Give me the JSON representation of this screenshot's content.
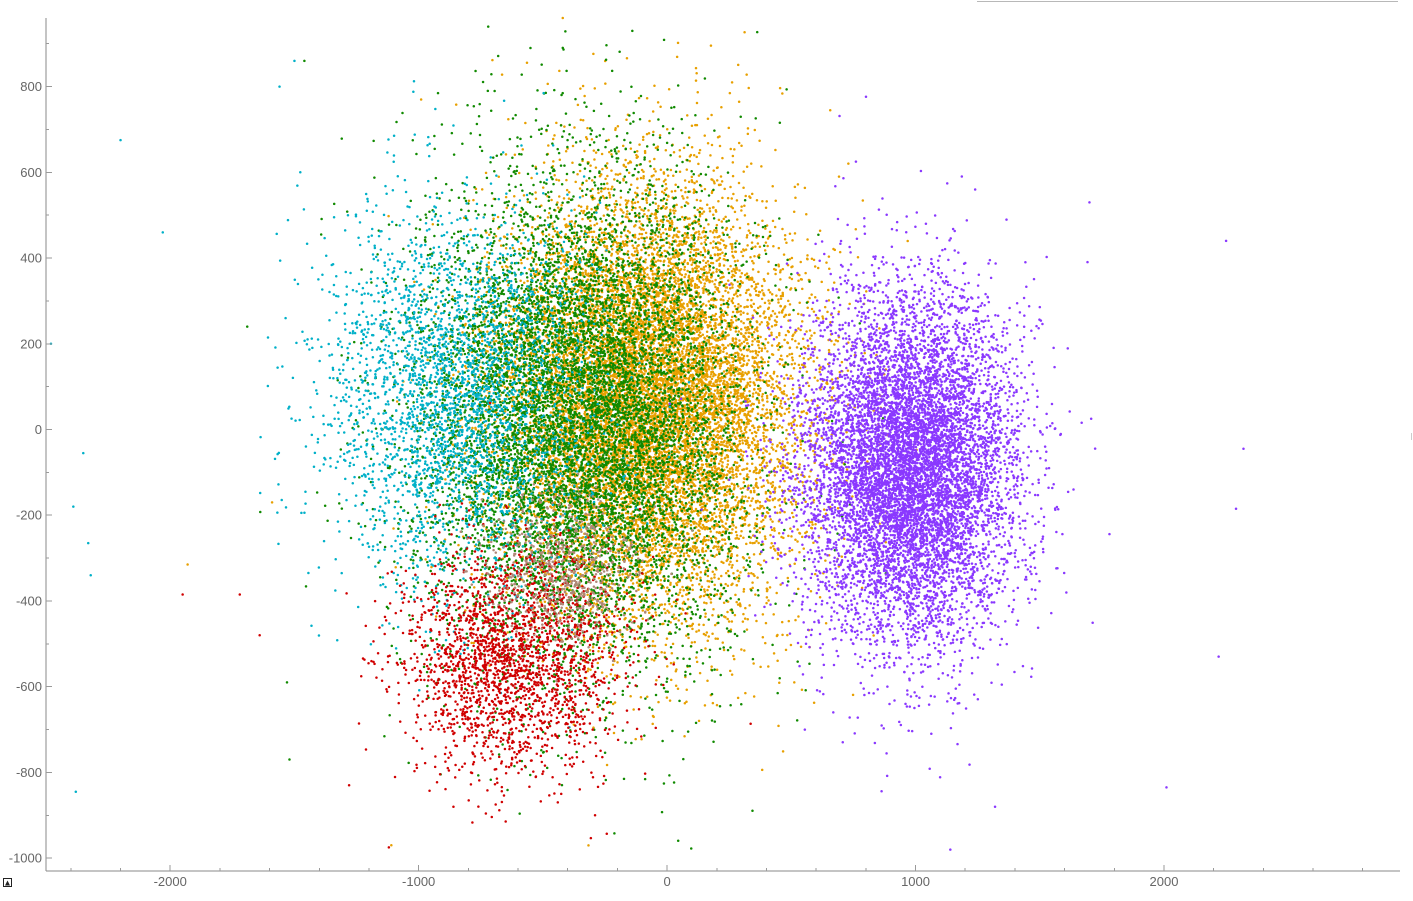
{
  "chart_data": {
    "type": "scatter",
    "title": "",
    "xlabel": "",
    "ylabel": "",
    "xlim": [
      -2500,
      2950
    ],
    "ylim": [
      -1030,
      960
    ],
    "x_ticks": [
      -2000,
      -1000,
      0,
      1000,
      2000
    ],
    "x_tick_labels": [
      "-2000",
      "-1000",
      "0",
      "1000",
      "2000"
    ],
    "y_ticks": [
      800,
      600,
      400,
      200,
      0,
      -200,
      -400,
      -600,
      -800,
      -1000
    ],
    "y_tick_labels": [
      "800",
      "600",
      "400",
      "200",
      "0",
      "-200",
      "-400",
      "-600",
      "-800",
      "-1000"
    ],
    "grid": false,
    "legend": "none",
    "marker_size": 2.5,
    "series": [
      {
        "color": "#e8a000",
        "point_count": 12000,
        "center": [
          -80,
          60
        ],
        "spread": [
          300,
          250
        ],
        "sample_points": [
          [
            420,
            120
          ],
          [
            490,
            -80
          ],
          [
            520,
            230
          ],
          [
            300,
            520
          ],
          [
            120,
            710
          ],
          [
            -420,
            960
          ],
          [
            -990,
            770
          ],
          [
            -1590,
            -170
          ],
          [
            -1110,
            -970
          ],
          [
            -1930,
            -315
          ]
        ]
      },
      {
        "color": "#108a00",
        "point_count": 9000,
        "center": [
          -360,
          20
        ],
        "spread": [
          320,
          280
        ],
        "sample_points": [
          [
            -720,
            940
          ],
          [
            -140,
            930
          ],
          [
            -550,
            890
          ],
          [
            -1460,
            860
          ],
          [
            -1690,
            240
          ],
          [
            -1530,
            -590
          ],
          [
            -1520,
            -770
          ],
          [
            -920,
            -180
          ],
          [
            120,
            -520
          ],
          [
            -200,
            580
          ]
        ]
      },
      {
        "color": "#00b0c8",
        "point_count": 3000,
        "center": [
          -860,
          80
        ],
        "spread": [
          260,
          220
        ],
        "sample_points": [
          [
            -2480,
            200
          ],
          [
            -2200,
            675
          ],
          [
            -2030,
            460
          ],
          [
            -2350,
            -55
          ],
          [
            -2390,
            -180
          ],
          [
            -2330,
            -265
          ],
          [
            -2320,
            -340
          ],
          [
            -2380,
            -845
          ],
          [
            -1500,
            860
          ],
          [
            -1560,
            800
          ]
        ]
      },
      {
        "color": "#d00000",
        "point_count": 2200,
        "center": [
          -620,
          -540
        ],
        "spread": [
          220,
          130
        ],
        "sample_points": [
          [
            -1120,
            -975
          ],
          [
            -860,
            -880
          ],
          [
            -690,
            -875
          ],
          [
            -440,
            -870
          ],
          [
            -290,
            -900
          ],
          [
            -1720,
            -385
          ],
          [
            -1950,
            -385
          ],
          [
            -1640,
            -480
          ],
          [
            -1280,
            -830
          ],
          [
            -520,
            -720
          ]
        ]
      },
      {
        "color": "#8a38ff",
        "point_count": 9000,
        "center": [
          980,
          -90
        ],
        "spread": [
          210,
          200
        ],
        "sample_points": [
          [
            1140,
            -980
          ],
          [
            1320,
            -880
          ],
          [
            2010,
            -835
          ],
          [
            1700,
            530
          ],
          [
            1240,
            560
          ],
          [
            2250,
            440
          ],
          [
            2320,
            -45
          ],
          [
            2290,
            -185
          ],
          [
            2220,
            -530
          ],
          [
            760,
            625
          ]
        ]
      },
      {
        "color": "#b08878",
        "point_count": 600,
        "center": [
          -420,
          -330
        ],
        "spread": [
          150,
          90
        ],
        "sample_points": [
          [
            -560,
            -250
          ],
          [
            -360,
            -310
          ],
          [
            -280,
            -420
          ],
          [
            -480,
            -390
          ],
          [
            -620,
            -340
          ]
        ]
      }
    ]
  }
}
